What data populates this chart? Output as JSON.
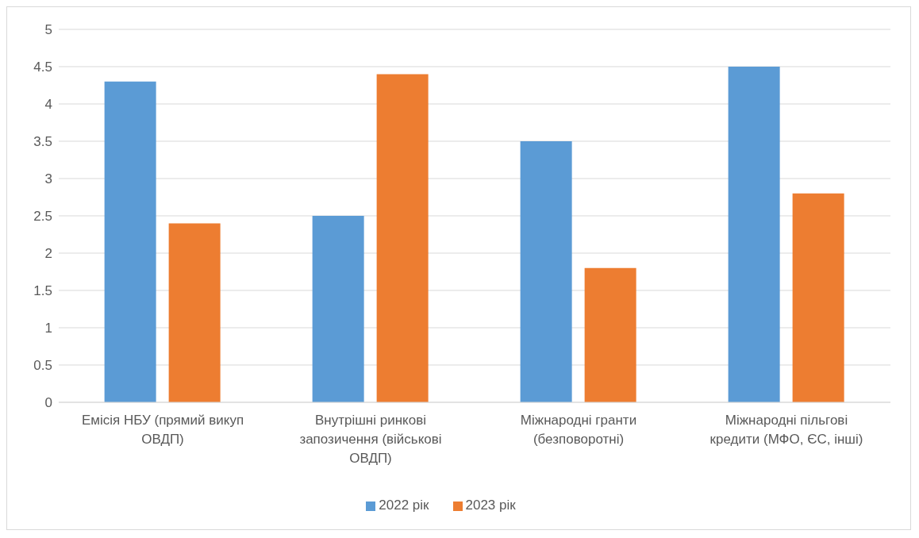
{
  "chart_data": {
    "type": "bar",
    "categories": [
      "Емісія НБУ (прямий викуп ОВДП)",
      "Внутрішні ринкові запозичення (військові ОВДП)",
      "Міжнародні гранти (безповоротні)",
      "Міжнародні пільгові кредити (МФО, ЄС, інші)"
    ],
    "series": [
      {
        "name": "2022 рік",
        "color": "#5b9bd5",
        "values": [
          4.3,
          2.5,
          3.5,
          4.5
        ]
      },
      {
        "name": "2023 рік",
        "color": "#ed7d31",
        "values": [
          2.4,
          4.4,
          1.8,
          2.8
        ]
      }
    ],
    "ylim": [
      0,
      5
    ],
    "yticks": [
      0,
      0.5,
      1,
      1.5,
      2,
      2.5,
      3,
      3.5,
      4,
      4.5,
      5
    ],
    "grid": "y",
    "legend": "bottom"
  }
}
